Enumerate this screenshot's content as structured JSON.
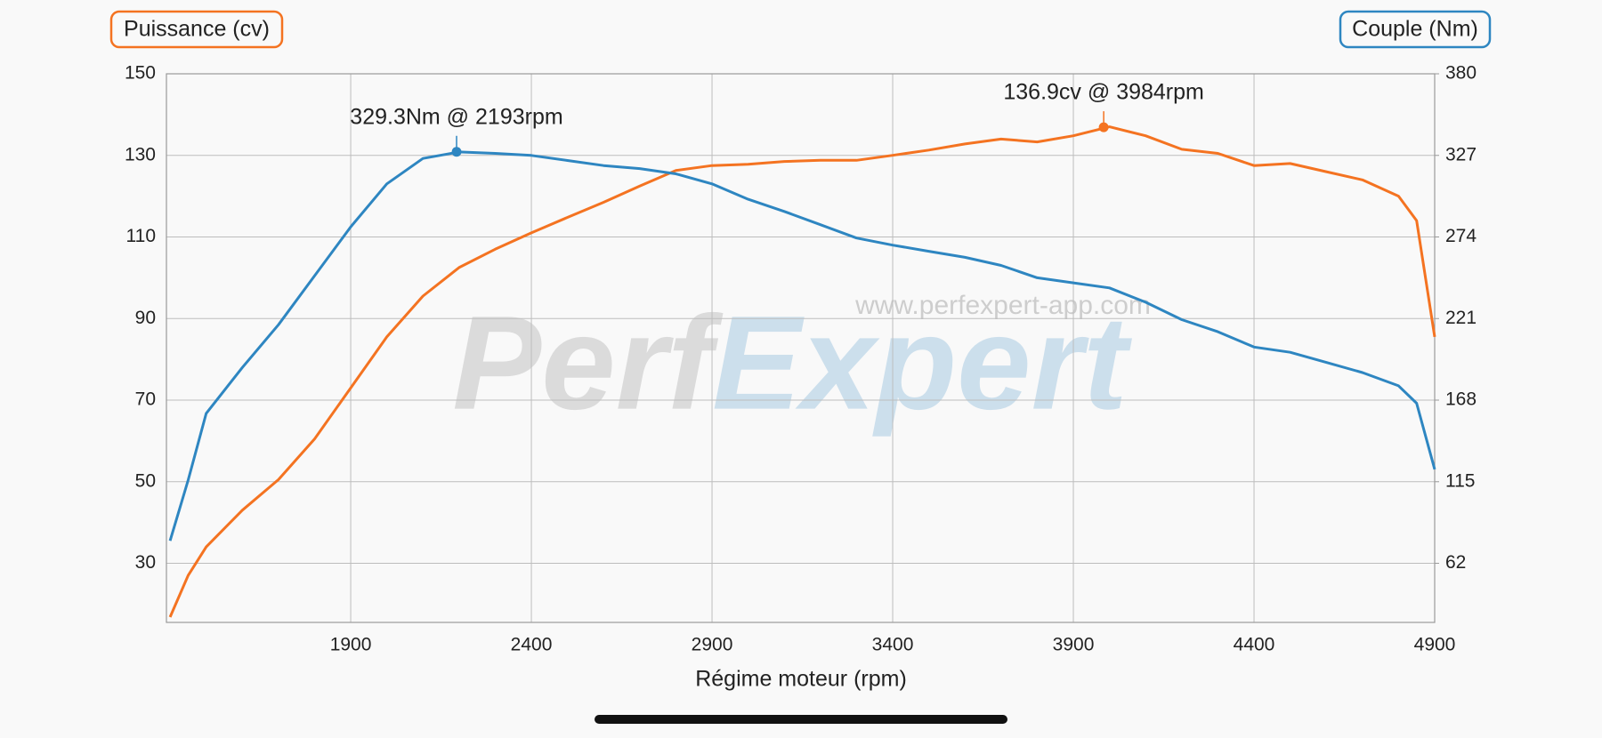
{
  "chart_data": {
    "type": "line",
    "y_label": "Puissance (cv)",
    "y2_label": "Couple (Nm)",
    "x_label": "Régime moteur (rpm)",
    "watermark": {
      "left": "Perf",
      "right": "Expert",
      "url": "www.perfexpert-app.com"
    },
    "x": [
      1400,
      1450,
      1500,
      1600,
      1700,
      1800,
      1900,
      2000,
      2100,
      2200,
      2300,
      2400,
      2500,
      2600,
      2700,
      2800,
      2900,
      3000,
      3100,
      3200,
      3300,
      3400,
      3500,
      3600,
      3700,
      3800,
      3900,
      4000,
      4100,
      4200,
      4300,
      4400,
      4500,
      4600,
      4700,
      4800,
      4850,
      4900
    ],
    "series": [
      {
        "name": "Puissance (cv)",
        "color": "#f47321",
        "axis": "y",
        "values": [
          16.8,
          27,
          34,
          43,
          50.5,
          60.5,
          73,
          85.5,
          95.5,
          102.5,
          107,
          111,
          114.8,
          118.5,
          122.5,
          126.3,
          127.5,
          127.8,
          128.5,
          128.8,
          128.8,
          130,
          131.3,
          132.8,
          134,
          133.3,
          134.8,
          137,
          134.8,
          131.5,
          130.5,
          127.5,
          128,
          126,
          124,
          120,
          114,
          85.5
        ]
      },
      {
        "name": "Couple (Nm)",
        "color": "#2e86c1",
        "axis": "y2",
        "values": [
          76.6,
          116,
          159.4,
          189.2,
          217,
          248.8,
          280.6,
          308.5,
          325,
          329.2,
          328.3,
          327,
          323.7,
          320.4,
          318.4,
          315,
          308.5,
          298.5,
          290.6,
          282,
          273.3,
          268.7,
          264.7,
          260.8,
          255.5,
          247.5,
          244.2,
          240.9,
          231.6,
          220.3,
          212.4,
          202.5,
          199.1,
          192.5,
          185.9,
          177.3,
          166,
          123
        ]
      }
    ],
    "annotations": [
      {
        "text": "329.3Nm @ 2193rpm",
        "x": 2193,
        "y": 329.3,
        "series": 1
      },
      {
        "text": "136.9cv @ 3984rpm",
        "x": 3984,
        "y": 136.9,
        "series": 0
      }
    ],
    "xlim": [
      1390,
      4900
    ],
    "xticks": [
      1900,
      2400,
      2900,
      3400,
      3900,
      4400,
      4900
    ],
    "ylim": [
      15.5,
      150
    ],
    "yticks": [
      30,
      50,
      70,
      90,
      110,
      130,
      150
    ],
    "y2lim": [
      23.6,
      380
    ],
    "y2ticks": [
      62,
      115,
      168,
      221,
      274,
      327,
      380
    ],
    "grid": true
  }
}
